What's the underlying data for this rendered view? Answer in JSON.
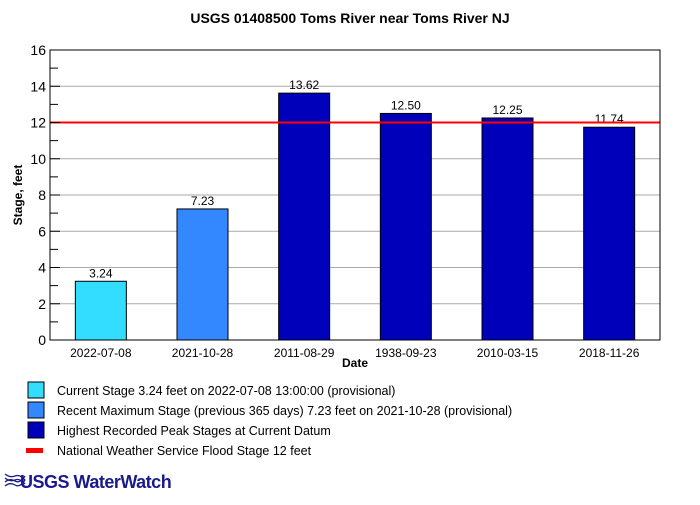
{
  "chart_data": {
    "type": "bar",
    "title": "USGS 01408500 Toms River near Toms River NJ",
    "xlabel": "Date",
    "ylabel": "Stage, feet",
    "ylim": [
      0,
      16
    ],
    "yticks": [
      "0",
      "2",
      "4",
      "6",
      "8",
      "10",
      "12",
      "14",
      "16"
    ],
    "categories": [
      "2022-07-08",
      "2021-10-28",
      "2011-08-29",
      "1938-09-23",
      "2010-03-15",
      "2018-11-26"
    ],
    "values": [
      3.24,
      7.23,
      13.62,
      12.5,
      12.25,
      11.74
    ],
    "value_labels": [
      "3.24",
      "7.23",
      "13.62",
      "12.50",
      "12.25",
      "11.74"
    ],
    "bar_series": [
      0,
      1,
      2,
      2,
      2,
      2
    ],
    "flood_stage": 12,
    "grid": true,
    "legend": [
      {
        "label": "Current Stage 3.24 feet on 2022-07-08 13:00:00 (provisional)",
        "color": "#33ddff",
        "kind": "box"
      },
      {
        "label": "Recent Maximum Stage (previous 365 days) 7.23 feet on 2021-10-28 (provisional)",
        "color": "#3388ff",
        "kind": "box"
      },
      {
        "label": "Highest Recorded Peak Stages at Current Datum",
        "color": "#0000bb",
        "kind": "box"
      },
      {
        "label": "National Weather Service Flood Stage 12 feet",
        "color": "#ff0000",
        "kind": "line"
      }
    ],
    "legend_placement": "bottom"
  },
  "logo": {
    "text": "USGS WaterWatch",
    "color": "#1a1a8c"
  }
}
